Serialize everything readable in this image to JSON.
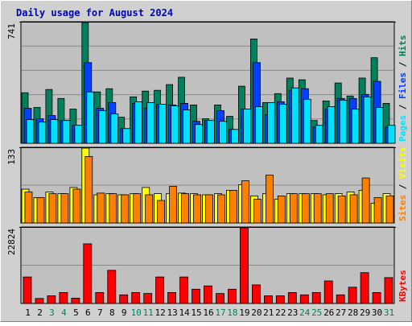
{
  "title": "Daily usage for August 2024",
  "colors": {
    "title": "#0000c0",
    "hits": "#00805c",
    "files": "#0040ff",
    "pages": "#00e0ff",
    "visits": "#ffff00",
    "sites": "#ff8000",
    "kbytes": "#ff0000",
    "weekend_day": "#00805c",
    "weekday": "#000000",
    "panel_bg": "#c0c0c0",
    "frame_bg": "#d0d0d0"
  },
  "chart_data": [
    {
      "type": "bar",
      "panel": "hits-files-pages",
      "scale_label": "741",
      "ylim": [
        0,
        741
      ],
      "legend": [
        "Pages",
        "Files",
        "Hits"
      ],
      "categories": [
        "1",
        "2",
        "3",
        "4",
        "5",
        "6",
        "7",
        "8",
        "9",
        "10",
        "11",
        "12",
        "13",
        "14",
        "15",
        "16",
        "17",
        "18",
        "19",
        "20",
        "21",
        "22",
        "23",
        "24",
        "25",
        "26",
        "27",
        "28",
        "29",
        "30",
        "31"
      ],
      "series": [
        {
          "name": "Hits",
          "values": [
            310,
            220,
            330,
            275,
            210,
            741,
            315,
            335,
            160,
            285,
            320,
            325,
            360,
            405,
            235,
            150,
            235,
            165,
            350,
            640,
            250,
            305,
            400,
            390,
            140,
            260,
            370,
            290,
            400,
            525,
            245
          ]
        },
        {
          "name": "Files",
          "values": [
            215,
            150,
            170,
            140,
            110,
            495,
            215,
            250,
            90,
            245,
            215,
            240,
            235,
            245,
            135,
            140,
            200,
            85,
            210,
            495,
            175,
            255,
            325,
            335,
            100,
            210,
            275,
            275,
            300,
            380,
            100
          ]
        },
        {
          "name": "Pages",
          "values": [
            145,
            130,
            145,
            140,
            110,
            315,
            200,
            180,
            90,
            255,
            250,
            240,
            230,
            205,
            115,
            140,
            135,
            85,
            210,
            225,
            250,
            240,
            340,
            270,
            110,
            225,
            265,
            210,
            285,
            220,
            110
          ]
        }
      ]
    },
    {
      "type": "bar",
      "panel": "visits-sites",
      "scale_label": "133",
      "ylim": [
        0,
        133
      ],
      "legend": [
        "Sites",
        "Visits"
      ],
      "categories": [
        "1",
        "2",
        "3",
        "4",
        "5",
        "6",
        "7",
        "8",
        "9",
        "10",
        "11",
        "12",
        "13",
        "14",
        "15",
        "16",
        "17",
        "18",
        "19",
        "20",
        "21",
        "22",
        "23",
        "24",
        "25",
        "26",
        "27",
        "28",
        "29",
        "30",
        "31"
      ],
      "series": [
        {
          "name": "Visits",
          "values": [
            60,
            45,
            55,
            52,
            63,
            133,
            50,
            52,
            50,
            52,
            63,
            52,
            52,
            53,
            52,
            50,
            52,
            58,
            68,
            48,
            52,
            42,
            52,
            52,
            52,
            50,
            52,
            55,
            58,
            35,
            52
          ]
        },
        {
          "name": "Sites",
          "values": [
            55,
            45,
            52,
            52,
            60,
            118,
            53,
            52,
            50,
            52,
            50,
            40,
            65,
            52,
            50,
            50,
            50,
            58,
            75,
            42,
            85,
            48,
            52,
            52,
            52,
            52,
            48,
            50,
            80,
            45,
            48
          ]
        }
      ]
    },
    {
      "type": "bar",
      "panel": "kbytes",
      "scale_label": "22824",
      "ylim": [
        0,
        22824
      ],
      "legend": [
        "KBytes"
      ],
      "categories": [
        "1",
        "2",
        "3",
        "4",
        "5",
        "6",
        "7",
        "8",
        "9",
        "10",
        "11",
        "12",
        "13",
        "14",
        "15",
        "16",
        "17",
        "18",
        "19",
        "20",
        "21",
        "22",
        "23",
        "24",
        "25",
        "26",
        "27",
        "28",
        "29",
        "30",
        "31"
      ],
      "series": [
        {
          "name": "KBytes",
          "values": [
            8000,
            1500,
            2300,
            3300,
            1600,
            18000,
            3300,
            10000,
            2600,
            3300,
            3000,
            8000,
            3300,
            8000,
            4300,
            5300,
            3000,
            4300,
            22824,
            5600,
            2300,
            2300,
            3300,
            2600,
            3300,
            6800,
            2600,
            4900,
            9300,
            3300,
            7800
          ]
        }
      ]
    }
  ],
  "x_axis": {
    "labels": [
      "1",
      "2",
      "3",
      "4",
      "5",
      "6",
      "7",
      "8",
      "9",
      "10",
      "11",
      "12",
      "13",
      "14",
      "15",
      "16",
      "17",
      "18",
      "19",
      "20",
      "21",
      "22",
      "23",
      "24",
      "25",
      "26",
      "27",
      "28",
      "29",
      "30",
      "31"
    ],
    "weekend": [
      3,
      4,
      10,
      11,
      17,
      18,
      24,
      25,
      31
    ]
  }
}
